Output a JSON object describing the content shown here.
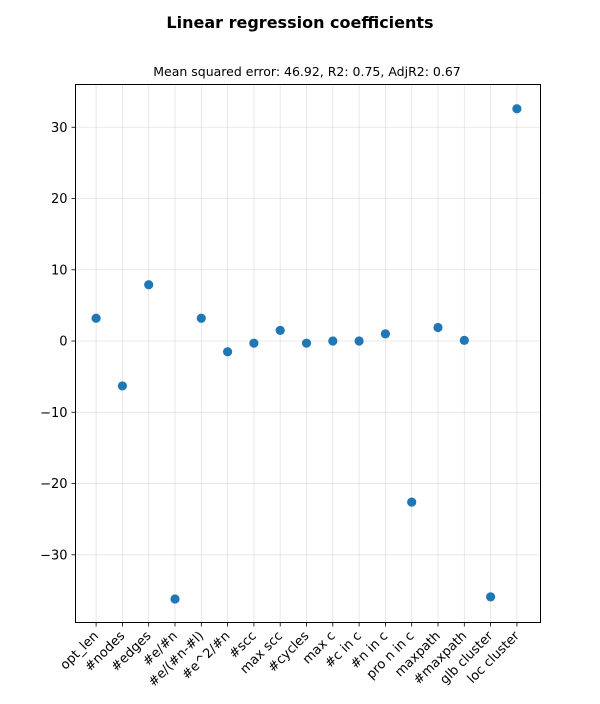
{
  "chart_data": {
    "type": "scatter",
    "title": "Linear regression coefficients",
    "subtitle": "Mean squared error: 46.92, R2: 0.75, AdjR2: 0.67",
    "xlabel": "",
    "ylabel": "",
    "categories": [
      "opt_len",
      "#nodes",
      "#edges",
      "#e/#n",
      "#e/(#n-#l)",
      "#e^2/#n",
      "#scc",
      "max scc",
      "#cycles",
      "max c",
      "#c in c",
      "#n in c",
      "pro n in c",
      "maxpath",
      "#maxpath",
      "glb cluster",
      "loc cluster"
    ],
    "values": [
      3.2,
      -6.3,
      7.9,
      -36.2,
      3.2,
      -1.5,
      -0.3,
      1.5,
      -0.3,
      0.0,
      0.0,
      1.0,
      -22.6,
      1.9,
      0.1,
      -35.9,
      32.6
    ],
    "ylim": [
      -39.5,
      36
    ],
    "yticks": [
      -30,
      -20,
      -10,
      0,
      10,
      20,
      30
    ],
    "ytick_labels": [
      "−30",
      "−20",
      "−10",
      "0",
      "10",
      "20",
      "30"
    ],
    "grid": true,
    "marker_color": "#1f77b4"
  }
}
